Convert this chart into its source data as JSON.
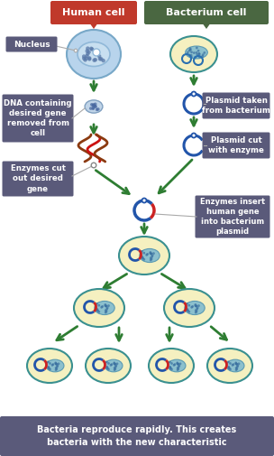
{
  "bg_color": "#ffffff",
  "human_cell_label": "Human cell",
  "bacterium_cell_label": "Bacterium cell",
  "human_cell_bg": "#c0392b",
  "bacterium_cell_bg": "#4a6741",
  "label_text_color": "#ffffff",
  "box_bg": "#5a5a7a",
  "box_text_color": "#ffffff",
  "arrow_color": "#2e7d32",
  "nucleus_label": "Nucleus",
  "step1_left": "DNA containing\ndesired gene\nremoved from\ncell",
  "step1_right": "Plasmid taken\nfrom bacterium",
  "step2_right": "Plasmid cut\nwith enzyme",
  "step3_left": "Enzymes cut\nout desired\ngene",
  "step3_right": "Enzymes insert\nhuman gene\ninto bacterium\nplasmid",
  "bottom_label": "Bacteria reproduce rapidly. This creates\nbacteria with the new characteristic",
  "cell_fill": "#f5f0c0",
  "cell_outline": "#3a9090",
  "human_fill": "#c0d8ec",
  "human_outline": "#80a8c8",
  "nucleus_fill": "#d0e4f4",
  "chromatin_color": "#5878a8"
}
